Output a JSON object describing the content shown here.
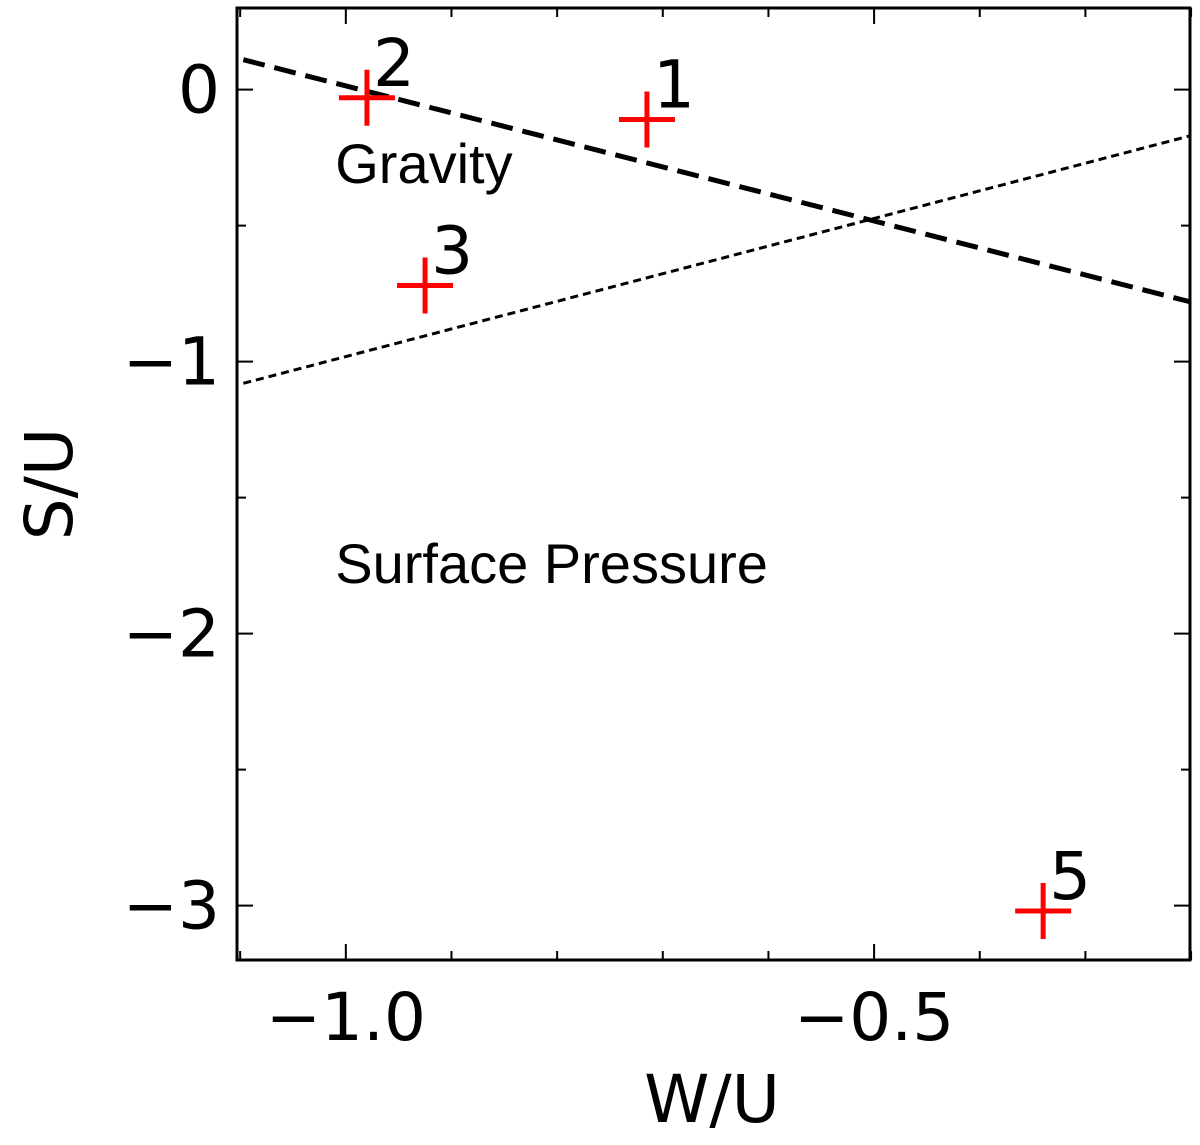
{
  "chart_data": {
    "type": "scatter",
    "title": "",
    "xlabel": "W/U",
    "ylabel": "S/U",
    "xlim": [
      -1.103,
      -0.201
    ],
    "ylim": [
      -3.2,
      0.3
    ],
    "grid": false,
    "x_ticks": [
      -1.0,
      -0.5
    ],
    "x_tick_labels": [
      "−1.0",
      "−0.5"
    ],
    "y_ticks": [
      0,
      -1,
      -2,
      -3
    ],
    "y_tick_labels": [
      "0",
      "−1",
      "−2",
      "−3"
    ],
    "points": [
      {
        "label": "2",
        "x": -0.98,
        "y": -0.03
      },
      {
        "label": "1",
        "x": -0.715,
        "y": -0.11
      },
      {
        "label": "3",
        "x": -0.925,
        "y": -0.72
      },
      {
        "label": "5",
        "x": -0.34,
        "y": -3.02
      }
    ],
    "lines": [
      {
        "style": "dashed",
        "x": [
          -1.097,
          -0.201
        ],
        "y": [
          0.11,
          -0.78
        ]
      },
      {
        "style": "dotted",
        "x": [
          -1.097,
          -0.201
        ],
        "y": [
          -1.08,
          -0.17
        ]
      }
    ],
    "annotations": [
      {
        "text": "Gravity",
        "x": -1.01,
        "y": -0.27
      },
      {
        "text": "Surface Pressure",
        "x": -1.01,
        "y": -1.74
      }
    ],
    "point_color": "#ff0000",
    "line_color": "#000000"
  }
}
